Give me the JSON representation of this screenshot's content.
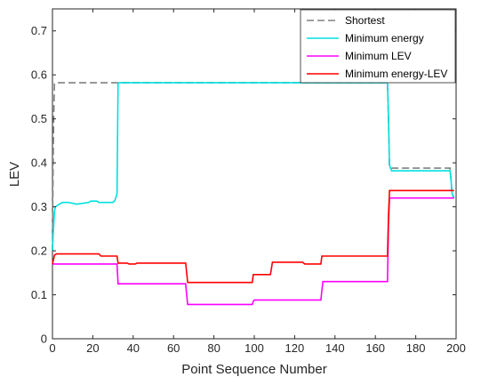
{
  "chart_data": {
    "type": "line",
    "title": "",
    "xlabel": "Point Sequence Number",
    "ylabel": "LEV",
    "xlim": [
      0,
      200
    ],
    "ylim": [
      0,
      0.75
    ],
    "xticks": [
      0,
      20,
      40,
      60,
      80,
      100,
      120,
      140,
      160,
      180,
      200
    ],
    "yticks": [
      0,
      0.1,
      0.2,
      0.3,
      0.4,
      0.5,
      0.6,
      0.7
    ],
    "x_tick_labels": [
      "0",
      "20",
      "40",
      "60",
      "80",
      "100",
      "120",
      "140",
      "160",
      "180",
      "200"
    ],
    "y_tick_labels": [
      "0",
      "0.1",
      "0.2",
      "0.3",
      "0.4",
      "0.5",
      "0.6",
      "0.7"
    ],
    "grid": false,
    "legend_position": "top-right",
    "series": [
      {
        "name": "Shortest",
        "color": "#808080",
        "dash": "dashed",
        "x": [
          0,
          0.3,
          0.6,
          1,
          2,
          32,
          32.5,
          166,
          166.5,
          167,
          168,
          197,
          197.5,
          198,
          199
        ],
        "y": [
          0.2,
          0.38,
          0.5,
          0.58,
          0.582,
          0.582,
          0.582,
          0.582,
          0.5,
          0.39,
          0.388,
          0.388,
          0.36,
          0.33,
          0.32
        ]
      },
      {
        "name": "Minimum energy",
        "color": "#00e0e0",
        "dash": "solid",
        "x": [
          0,
          0.5,
          1,
          1.5,
          3,
          5,
          8,
          10,
          12,
          18,
          19,
          22,
          23,
          24,
          30,
          31,
          32,
          32.5,
          33,
          166,
          166.5,
          167,
          168,
          197,
          197.5,
          198,
          199
        ],
        "y": [
          0.2,
          0.25,
          0.29,
          0.3,
          0.305,
          0.31,
          0.31,
          0.308,
          0.306,
          0.31,
          0.313,
          0.313,
          0.31,
          0.31,
          0.31,
          0.315,
          0.33,
          0.58,
          0.582,
          0.582,
          0.5,
          0.395,
          0.382,
          0.382,
          0.36,
          0.33,
          0.32
        ]
      },
      {
        "name": "Minimum LEV",
        "color": "#ff00ff",
        "dash": "solid",
        "x": [
          0,
          1,
          32,
          32.5,
          40,
          42,
          66,
          66.5,
          67,
          99,
          99.5,
          100,
          133,
          133.5,
          134,
          166,
          166.5,
          167,
          199
        ],
        "y": [
          0.17,
          0.17,
          0.17,
          0.125,
          0.125,
          0.125,
          0.125,
          0.1,
          0.078,
          0.078,
          0.085,
          0.088,
          0.088,
          0.11,
          0.13,
          0.13,
          0.26,
          0.32,
          0.32
        ]
      },
      {
        "name": "Minimum energy-LEV",
        "color": "#ff0000",
        "dash": "solid",
        "x": [
          0,
          1,
          2,
          23,
          24,
          32,
          32.5,
          37,
          38,
          41,
          42,
          66,
          66.5,
          67,
          99,
          99.5,
          108,
          109,
          124,
          125,
          133,
          133.5,
          166,
          166.5,
          167,
          199
        ],
        "y": [
          0.17,
          0.19,
          0.193,
          0.193,
          0.188,
          0.188,
          0.172,
          0.172,
          0.17,
          0.17,
          0.172,
          0.172,
          0.15,
          0.128,
          0.128,
          0.146,
          0.146,
          0.174,
          0.174,
          0.17,
          0.17,
          0.188,
          0.188,
          0.28,
          0.337,
          0.337
        ]
      }
    ]
  }
}
